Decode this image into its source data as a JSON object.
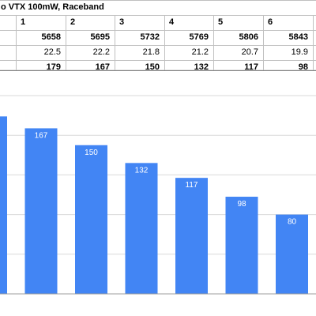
{
  "sheet": {
    "title": "o VTX 100mW, Raceband",
    "channels": [
      "1",
      "2",
      "3",
      "4",
      "5",
      "6"
    ],
    "frequencies": [
      "5658",
      "5695",
      "5732",
      "5769",
      "5806",
      "5843"
    ],
    "values": [
      "22.5",
      "22.2",
      "21.8",
      "21.2",
      "20.7",
      "19.9"
    ],
    "totals": [
      "179",
      "167",
      "150",
      "132",
      "117",
      "98"
    ]
  },
  "colors": {
    "bar": "#4285f4",
    "grid": "#d9d9d9",
    "cell_border": "#c0c0c0"
  },
  "chart_data": {
    "type": "bar",
    "categories": [
      "",
      "",
      "",
      "",
      "",
      "",
      ""
    ],
    "values": [
      179,
      167,
      150,
      132,
      117,
      98,
      80
    ],
    "data_labels": [
      "",
      "167",
      "150",
      "132",
      "117",
      "98",
      "80"
    ],
    "ylim": [
      0,
      200
    ],
    "grid": true
  }
}
